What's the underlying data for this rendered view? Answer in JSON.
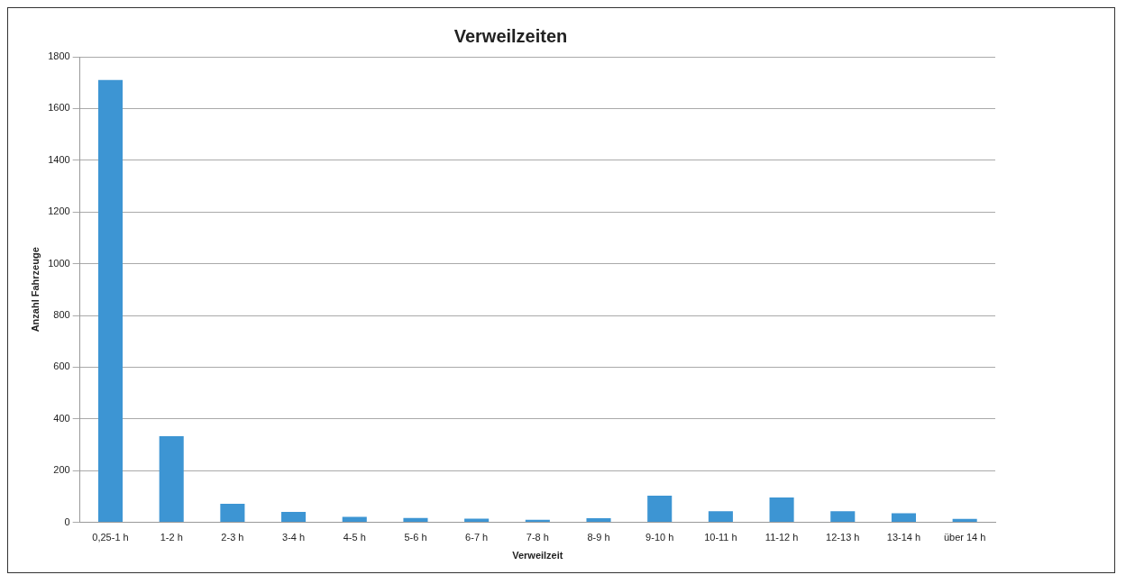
{
  "chart_data": {
    "type": "bar",
    "title": "Verweilzeiten",
    "xlabel": "Verweilzeit",
    "ylabel": "Anzahl Fahrzeuge",
    "categories": [
      "0,25-1 h",
      "1-2 h",
      "2-3 h",
      "3-4 h",
      "4-5 h",
      "5-6 h",
      "6-7 h",
      "7-8 h",
      "8-9 h",
      "9-10 h",
      "10-11 h",
      "11-12 h",
      "12-13 h",
      "13-14 h",
      "über 14 h"
    ],
    "values": [
      1710,
      333,
      72,
      40,
      21,
      17,
      14,
      10,
      16,
      103,
      43,
      96,
      43,
      35,
      13
    ],
    "color": "#3d95d3",
    "ylim": [
      0,
      1800
    ],
    "yticks": [
      0,
      200,
      400,
      600,
      800,
      1000,
      1200,
      1400,
      1600,
      1800
    ],
    "grid": "y",
    "legend": false
  }
}
